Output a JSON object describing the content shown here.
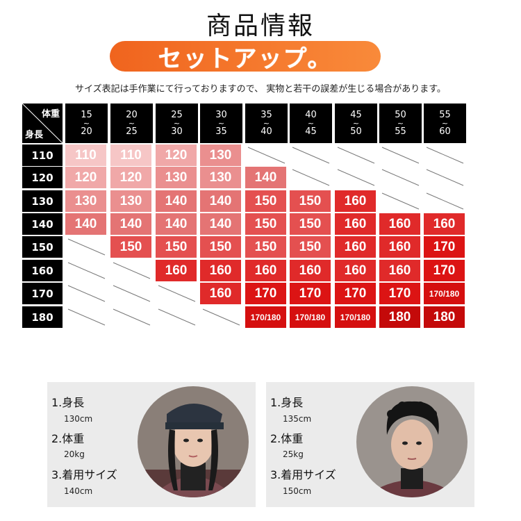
{
  "title": "商品情報",
  "banner": "セットアップ。",
  "note": "サイズ表記は手作業にて行っておりますので、 実物と若干の誤差が生じる場合があります。",
  "table": {
    "corner_weight": "体重",
    "corner_height": "身長",
    "weights": [
      {
        "from": "15",
        "to": "20"
      },
      {
        "from": "20",
        "to": "25"
      },
      {
        "from": "25",
        "to": "30"
      },
      {
        "from": "30",
        "to": "35"
      },
      {
        "from": "35",
        "to": "40"
      },
      {
        "from": "40",
        "to": "45"
      },
      {
        "from": "45",
        "to": "50"
      },
      {
        "from": "50",
        "to": "55"
      },
      {
        "from": "55",
        "to": "60"
      }
    ],
    "tilde": "~",
    "heights": [
      "110",
      "120",
      "130",
      "140",
      "150",
      "160",
      "170",
      "180"
    ],
    "rows": [
      [
        "110",
        "110",
        "120",
        "130",
        null,
        null,
        null,
        null,
        null
      ],
      [
        "120",
        "120",
        "130",
        "130",
        "140",
        null,
        null,
        null,
        null
      ],
      [
        "130",
        "130",
        "140",
        "140",
        "150",
        "150",
        "160",
        null,
        null
      ],
      [
        "140",
        "140",
        "140",
        "140",
        "150",
        "150",
        "160",
        "160",
        "160"
      ],
      [
        null,
        "150",
        "150",
        "150",
        "150",
        "150",
        "160",
        "160",
        "170"
      ],
      [
        null,
        null,
        "160",
        "160",
        "160",
        "160",
        "160",
        "160",
        "170"
      ],
      [
        null,
        null,
        null,
        "160",
        "170",
        "170",
        "170",
        "170",
        "170/180"
      ],
      [
        null,
        null,
        null,
        null,
        "170/180",
        "170/180",
        "170/180",
        "180",
        "180"
      ]
    ],
    "colors": {
      "110": "#f6c6c6",
      "120": "#f0a8a8",
      "130": "#ea8f8f",
      "140": "#e47474",
      "150": "#e45050",
      "160": "#e02a2a",
      "170": "#dc1414",
      "170/180": "#d50f0f",
      "180": "#c40a0a"
    }
  },
  "models": [
    {
      "label1": "1.身長",
      "value1": "130cm",
      "label2": "2.体重",
      "value2": "20kg",
      "label3": "3.着用サイズ",
      "value3": "140cm"
    },
    {
      "label1": "1.身長",
      "value1": "135cm",
      "label2": "2.体重",
      "value2": "25kg",
      "label3": "3.着用サイズ",
      "value3": "150cm"
    }
  ]
}
